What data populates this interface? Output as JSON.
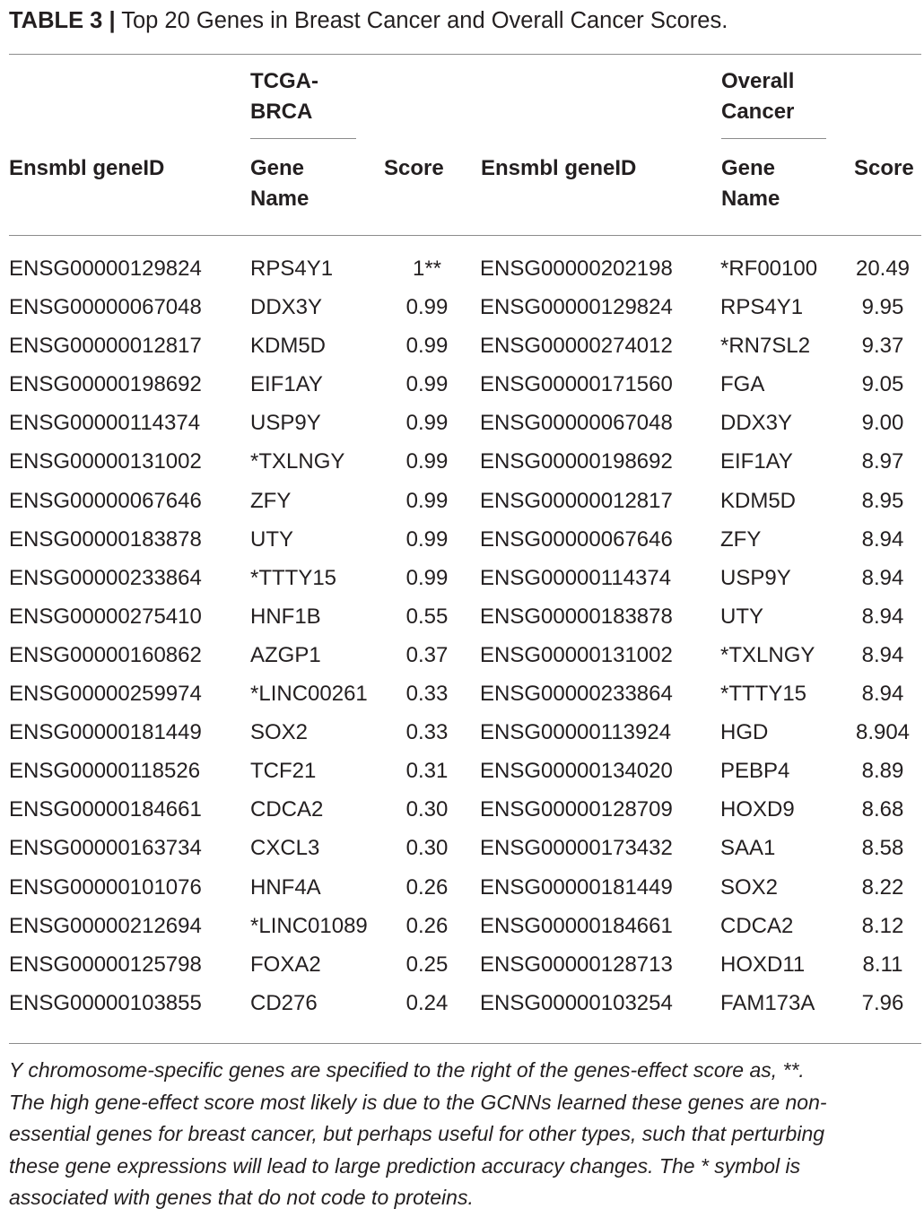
{
  "caption": {
    "label": "TABLE 3 |",
    "text": " Top 20 Genes in Breast Cancer and Overall Cancer Scores."
  },
  "header": {
    "group_left": "TCGA-\nBRCA",
    "group_right": "Overall\nCancer",
    "col_id_left": "Ensmbl geneID",
    "col_gene_left": "Gene\nName",
    "col_score_left": "Score",
    "col_id_right": "Ensmbl geneID",
    "col_gene_right": "Gene\nName",
    "col_score_right": "Score"
  },
  "rows": [
    [
      "ENSG00000129824",
      "RPS4Y1",
      "1**",
      "ENSG00000202198",
      "*RF00100",
      "20.49"
    ],
    [
      "ENSG00000067048",
      "DDX3Y",
      "0.99",
      "ENSG00000129824",
      "RPS4Y1",
      "9.95"
    ],
    [
      "ENSG00000012817",
      "KDM5D",
      "0.99",
      "ENSG00000274012",
      "*RN7SL2",
      "9.37"
    ],
    [
      "ENSG00000198692",
      "EIF1AY",
      "0.99",
      "ENSG00000171560",
      "FGA",
      "9.05"
    ],
    [
      "ENSG00000114374",
      "USP9Y",
      "0.99",
      "ENSG00000067048",
      "DDX3Y",
      "9.00"
    ],
    [
      "ENSG00000131002",
      "*TXLNGY",
      "0.99",
      "ENSG00000198692",
      "EIF1AY",
      "8.97"
    ],
    [
      "ENSG00000067646",
      "ZFY",
      "0.99",
      "ENSG00000012817",
      "KDM5D",
      "8.95"
    ],
    [
      "ENSG00000183878",
      "UTY",
      "0.99",
      "ENSG00000067646",
      "ZFY",
      "8.94"
    ],
    [
      "ENSG00000233864",
      "*TTTY15",
      "0.99",
      "ENSG00000114374",
      "USP9Y",
      "8.94"
    ],
    [
      "ENSG00000275410",
      "HNF1B",
      "0.55",
      "ENSG00000183878",
      "UTY",
      "8.94"
    ],
    [
      "ENSG00000160862",
      "AZGP1",
      "0.37",
      "ENSG00000131002",
      "*TXLNGY",
      "8.94"
    ],
    [
      "ENSG00000259974",
      "*LINC00261",
      "0.33",
      "ENSG00000233864",
      "*TTTY15",
      "8.94"
    ],
    [
      "ENSG00000181449",
      "SOX2",
      "0.33",
      "ENSG00000113924",
      "HGD",
      "8.904"
    ],
    [
      "ENSG00000118526",
      "TCF21",
      "0.31",
      "ENSG00000134020",
      "PEBP4",
      "8.89"
    ],
    [
      "ENSG00000184661",
      "CDCA2",
      "0.30",
      "ENSG00000128709",
      "HOXD9",
      "8.68"
    ],
    [
      "ENSG00000163734",
      "CXCL3",
      "0.30",
      "ENSG00000173432",
      "SAA1",
      "8.58"
    ],
    [
      "ENSG00000101076",
      "HNF4A",
      "0.26",
      "ENSG00000181449",
      "SOX2",
      "8.22"
    ],
    [
      "ENSG00000212694",
      "*LINC01089",
      "0.26",
      "ENSG00000184661",
      "CDCA2",
      "8.12"
    ],
    [
      "ENSG00000125798",
      "FOXA2",
      "0.25",
      "ENSG00000128713",
      "HOXD11",
      "8.11"
    ],
    [
      "ENSG00000103855",
      "CD276",
      "0.24",
      "ENSG00000103254",
      "FAM173A",
      "7.96"
    ]
  ],
  "footnote": [
    "Y chromosome-specific genes are specified to the right of the genes-effect score as, **.",
    "The high gene-effect score most likely is due to the GCNNs learned these genes are non-",
    "essential genes for breast cancer, but perhaps useful for other types, such that perturbing",
    "these gene expressions will lead to large prediction accuracy changes. The * symbol is",
    "associated with genes that do not code to proteins."
  ]
}
